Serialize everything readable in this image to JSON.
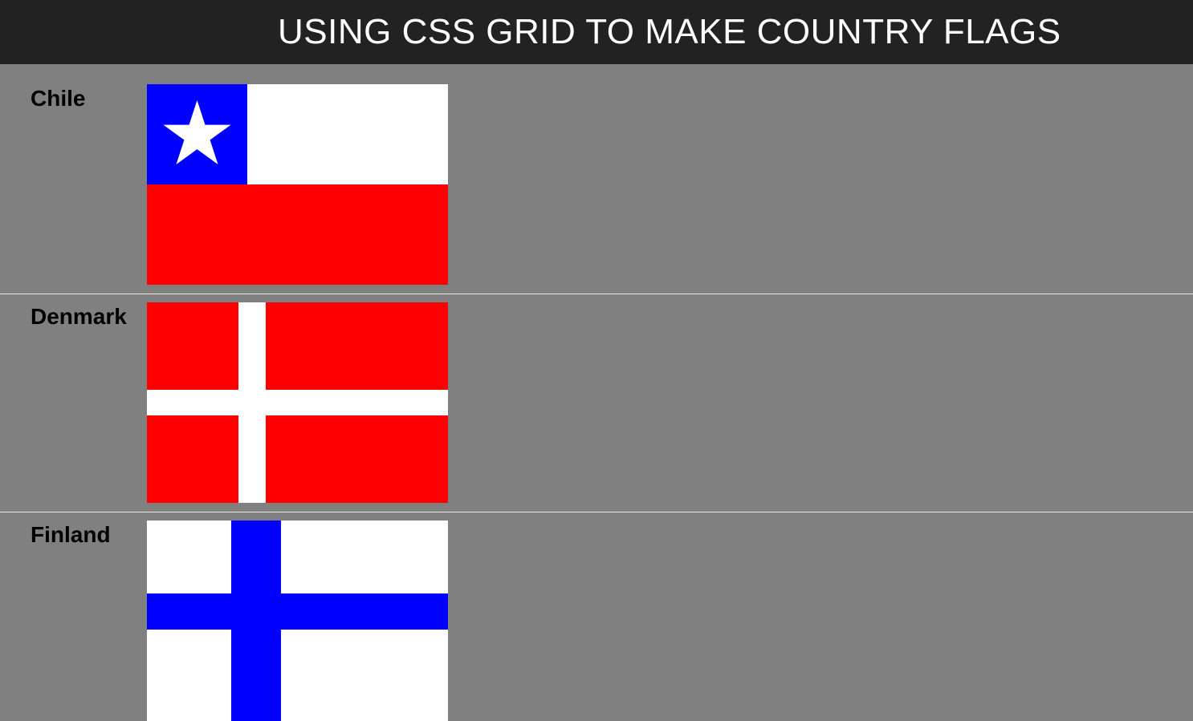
{
  "header": {
    "title": "USING CSS GRID TO MAKE COUNTRY FLAGS"
  },
  "colors": {
    "header_bg": "#222222",
    "page_bg": "#808080",
    "divider": "#e6e6e6",
    "red": "#ff0000",
    "white": "#ffffff",
    "blue": "#0000ff"
  },
  "countries": [
    {
      "name": "Chile",
      "flag_icon": "chile-flag-icon"
    },
    {
      "name": "Denmark",
      "flag_icon": "denmark-flag-icon"
    },
    {
      "name": "Finland",
      "flag_icon": "finland-flag-icon"
    }
  ]
}
